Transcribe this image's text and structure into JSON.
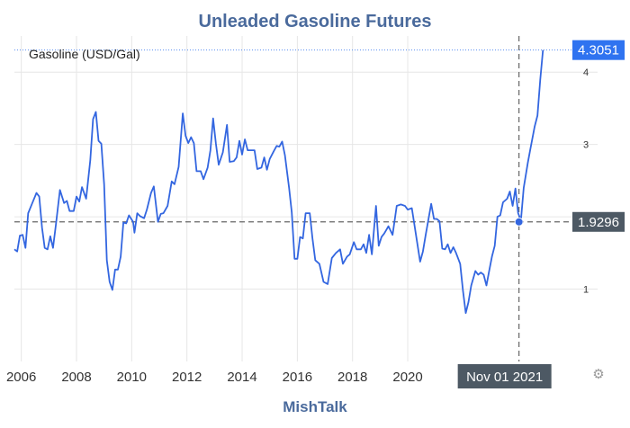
{
  "chart_data": {
    "type": "line",
    "title": "Unleaded Gasoline Futures",
    "source": "MishTalk",
    "series": [
      {
        "name": "Gasoline (USD/Gal)",
        "color": "#3366e0",
        "points": [
          [
            2005.75,
            1.55
          ],
          [
            2005.85,
            1.52
          ],
          [
            2005.95,
            1.74
          ],
          [
            2006.05,
            1.75
          ],
          [
            2006.15,
            1.57
          ],
          [
            2006.25,
            2.05
          ],
          [
            2006.4,
            2.19
          ],
          [
            2006.55,
            2.33
          ],
          [
            2006.65,
            2.28
          ],
          [
            2006.75,
            1.85
          ],
          [
            2006.85,
            1.57
          ],
          [
            2006.95,
            1.55
          ],
          [
            2007.05,
            1.73
          ],
          [
            2007.15,
            1.57
          ],
          [
            2007.25,
            1.88
          ],
          [
            2007.4,
            2.37
          ],
          [
            2007.55,
            2.19
          ],
          [
            2007.65,
            2.22
          ],
          [
            2007.75,
            2.08
          ],
          [
            2007.9,
            2.08
          ],
          [
            2008.0,
            2.28
          ],
          [
            2008.1,
            2.21
          ],
          [
            2008.2,
            2.41
          ],
          [
            2008.35,
            2.25
          ],
          [
            2008.5,
            2.78
          ],
          [
            2008.6,
            3.35
          ],
          [
            2008.7,
            3.45
          ],
          [
            2008.8,
            3.05
          ],
          [
            2008.9,
            3.01
          ],
          [
            2009.0,
            2.45
          ],
          [
            2009.1,
            1.4
          ],
          [
            2009.2,
            1.1
          ],
          [
            2009.3,
            0.99
          ],
          [
            2009.4,
            1.27
          ],
          [
            2009.5,
            1.27
          ],
          [
            2009.6,
            1.45
          ],
          [
            2009.7,
            1.92
          ],
          [
            2009.8,
            1.91
          ],
          [
            2009.9,
            2.02
          ],
          [
            2010.05,
            1.93
          ],
          [
            2010.1,
            1.78
          ],
          [
            2010.2,
            2.05
          ],
          [
            2010.3,
            2.01
          ],
          [
            2010.45,
            1.98
          ],
          [
            2010.55,
            2.1
          ],
          [
            2010.7,
            2.33
          ],
          [
            2010.8,
            2.42
          ],
          [
            2010.95,
            1.93
          ],
          [
            2011.05,
            2.04
          ],
          [
            2011.15,
            2.05
          ],
          [
            2011.3,
            2.15
          ],
          [
            2011.45,
            2.49
          ],
          [
            2011.55,
            2.45
          ],
          [
            2011.7,
            2.69
          ],
          [
            2011.85,
            3.43
          ],
          [
            2011.95,
            3.12
          ],
          [
            2012.05,
            3.02
          ],
          [
            2012.15,
            3.1
          ],
          [
            2012.25,
            3.02
          ],
          [
            2012.35,
            2.63
          ],
          [
            2012.5,
            2.63
          ],
          [
            2012.6,
            2.52
          ],
          [
            2012.75,
            2.68
          ],
          [
            2012.85,
            2.92
          ],
          [
            2012.95,
            3.36
          ],
          [
            2013.05,
            3.01
          ],
          [
            2013.15,
            2.72
          ],
          [
            2013.3,
            2.89
          ],
          [
            2013.45,
            3.27
          ],
          [
            2013.55,
            2.76
          ],
          [
            2013.7,
            2.77
          ],
          [
            2013.8,
            2.82
          ],
          [
            2013.9,
            3.05
          ],
          [
            2014.0,
            2.86
          ],
          [
            2014.1,
            3.07
          ],
          [
            2014.2,
            2.92
          ],
          [
            2014.3,
            2.92
          ],
          [
            2014.45,
            2.92
          ],
          [
            2014.55,
            2.66
          ],
          [
            2014.7,
            2.68
          ],
          [
            2014.8,
            2.82
          ],
          [
            2014.9,
            2.65
          ],
          [
            2015.0,
            2.8
          ],
          [
            2015.15,
            2.91
          ],
          [
            2015.25,
            2.98
          ],
          [
            2015.35,
            2.97
          ],
          [
            2015.45,
            3.04
          ],
          [
            2015.55,
            2.85
          ],
          [
            2015.7,
            2.4
          ],
          [
            2015.8,
            2.06
          ],
          [
            2015.9,
            1.42
          ],
          [
            2016.0,
            1.42
          ],
          [
            2016.1,
            1.72
          ],
          [
            2016.2,
            1.7
          ],
          [
            2016.3,
            2.05
          ],
          [
            2016.45,
            2.05
          ],
          [
            2016.55,
            1.7
          ],
          [
            2016.65,
            1.4
          ],
          [
            2016.8,
            1.35
          ],
          [
            2016.95,
            1.1
          ],
          [
            2017.1,
            1.07
          ],
          [
            2017.25,
            1.43
          ],
          [
            2017.4,
            1.5
          ],
          [
            2017.55,
            1.55
          ],
          [
            2017.65,
            1.35
          ],
          [
            2017.8,
            1.45
          ],
          [
            2017.9,
            1.48
          ],
          [
            2018.05,
            1.65
          ],
          [
            2018.15,
            1.55
          ],
          [
            2018.3,
            1.55
          ],
          [
            2018.4,
            1.62
          ],
          [
            2018.5,
            1.5
          ],
          [
            2018.6,
            1.75
          ],
          [
            2018.7,
            1.48
          ],
          [
            2018.85,
            2.15
          ],
          [
            2018.95,
            1.6
          ],
          [
            2019.05,
            1.72
          ],
          [
            2019.15,
            1.77
          ],
          [
            2019.3,
            1.87
          ],
          [
            2019.45,
            1.75
          ],
          [
            2019.6,
            2.15
          ],
          [
            2019.75,
            2.17
          ],
          [
            2019.9,
            2.15
          ],
          [
            2020.0,
            2.1
          ],
          [
            2020.15,
            2.12
          ],
          [
            2020.3,
            1.75
          ],
          [
            2020.45,
            1.38
          ],
          [
            2020.55,
            1.52
          ],
          [
            2020.65,
            1.75
          ],
          [
            2020.85,
            2.18
          ],
          [
            2020.95,
            1.97
          ],
          [
            2021.05,
            1.97
          ],
          [
            2021.15,
            1.94
          ],
          [
            2021.25,
            1.56
          ],
          [
            2021.35,
            1.55
          ],
          [
            2021.45,
            1.62
          ],
          [
            2021.55,
            1.5
          ],
          [
            2021.65,
            1.58
          ],
          [
            2021.75,
            1.5
          ],
          [
            2021.9,
            1.35
          ],
          [
            2022.0,
            0.98
          ],
          [
            2022.1,
            0.67
          ],
          [
            2022.2,
            0.82
          ],
          [
            2022.3,
            1.05
          ],
          [
            2022.45,
            1.25
          ],
          [
            2022.55,
            1.2
          ],
          [
            2022.65,
            1.23
          ],
          [
            2022.75,
            1.2
          ],
          [
            2022.85,
            1.05
          ],
          [
            2022.95,
            1.25
          ],
          [
            2023.05,
            1.45
          ],
          [
            2023.15,
            1.6
          ],
          [
            2023.25,
            2.0
          ],
          [
            2023.35,
            2.02
          ],
          [
            2023.45,
            2.2
          ],
          [
            2023.6,
            2.25
          ],
          [
            2023.7,
            2.35
          ],
          [
            2023.8,
            2.15
          ],
          [
            2023.9,
            2.39
          ],
          [
            2024.0,
            2.05
          ],
          [
            2024.1,
            1.95
          ],
          [
            2024.2,
            2.4
          ],
          [
            2024.35,
            2.75
          ],
          [
            2024.45,
            2.95
          ],
          [
            2024.6,
            3.25
          ],
          [
            2024.7,
            3.4
          ],
          [
            2024.8,
            3.9
          ],
          [
            2024.9,
            4.3051
          ]
        ]
      }
    ],
    "xlim": [
      2005.75,
      2025.9
    ],
    "ylim": [
      0.0,
      4.5
    ],
    "xticks": [
      2006,
      2008,
      2010,
      2012,
      2014,
      2016,
      2018,
      2020
    ],
    "xtick_labels": [
      "2006",
      "2008",
      "2010",
      "2012",
      "2014",
      "2016",
      "2018",
      "2020"
    ],
    "yticks": [
      1,
      2,
      3,
      4
    ],
    "ytick_labels": [
      "1",
      "2",
      "3",
      "4"
    ],
    "grid": true,
    "legend_placement": "top-left",
    "crosshair": {
      "x": 2024.03,
      "y": 1.9296,
      "x_label": "Nov 01 2021",
      "y_label": "1.9296"
    },
    "last_value": {
      "y": 4.3051,
      "label": "4.3051"
    },
    "colors": {
      "line": "#3366e0",
      "title": "#4a6a9c",
      "grid": "#e6e6e6",
      "last_badge": "#2f73f0",
      "crosshair_badge": "#4d5964"
    }
  },
  "ui": {
    "settings_icon": "gear-icon"
  }
}
